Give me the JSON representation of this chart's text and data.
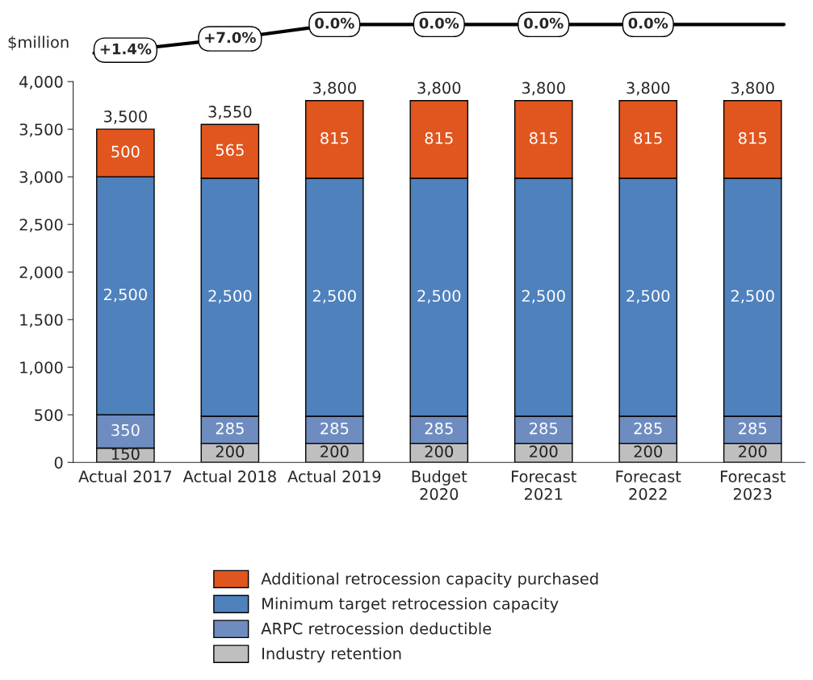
{
  "chart_data": {
    "type": "bar",
    "stacked": true,
    "ylabel": "$million",
    "categories": [
      "Actual 2017",
      "Actual 2018",
      "Actual 2019",
      "Budget\n2020",
      "Forecast\n2021",
      "Forecast\n2022",
      "Forecast\n2023"
    ],
    "series": [
      {
        "name": "Industry retention",
        "color": "#bfbfbf",
        "values": [
          150,
          200,
          200,
          200,
          200,
          200,
          200
        ],
        "value_labels": [
          "150",
          "200",
          "200",
          "200",
          "200",
          "200",
          "200"
        ]
      },
      {
        "name": "ARPC retrocession deductible",
        "color": "#6f8cc0",
        "values": [
          350,
          285,
          285,
          285,
          285,
          285,
          285
        ],
        "value_labels": [
          "350",
          "285",
          "285",
          "285",
          "285",
          "285",
          "285"
        ]
      },
      {
        "name": "Minimum target retrocession capacity",
        "color": "#4f81bd",
        "values": [
          2500,
          2500,
          2500,
          2500,
          2500,
          2500,
          2500
        ],
        "value_labels": [
          "2,500",
          "2,500",
          "2,500",
          "2,500",
          "2,500",
          "2,500",
          "2,500"
        ]
      },
      {
        "name": "Additional retrocession capacity purchased",
        "color": "#e0561e",
        "values": [
          500,
          565,
          815,
          815,
          815,
          815,
          815
        ],
        "value_labels": [
          "500",
          "565",
          "815",
          "815",
          "815",
          "815",
          "815"
        ]
      }
    ],
    "totals": [
      "3,500",
      "3,550",
      "3,800",
      "3,800",
      "3,800",
      "3,800",
      "3,800"
    ],
    "annotations": [
      "+1.4%",
      "+7.0%",
      "0.0%",
      "0.0%",
      "0.0%",
      "0.0%"
    ],
    "ylim": [
      0,
      4000
    ],
    "yticks": [
      0,
      500,
      {
        "value": 1000,
        "label": "1,000"
      },
      {
        "value": 1500,
        "label": "1,500"
      },
      {
        "value": 2000,
        "label": "2,000"
      },
      {
        "value": 2500,
        "label": "2,500"
      },
      {
        "value": 3000,
        "label": "3,000"
      },
      {
        "value": 3500,
        "label": "3,500"
      },
      {
        "value": 4000,
        "label": "4,000"
      }
    ],
    "grid": false,
    "legend": "bottom"
  }
}
